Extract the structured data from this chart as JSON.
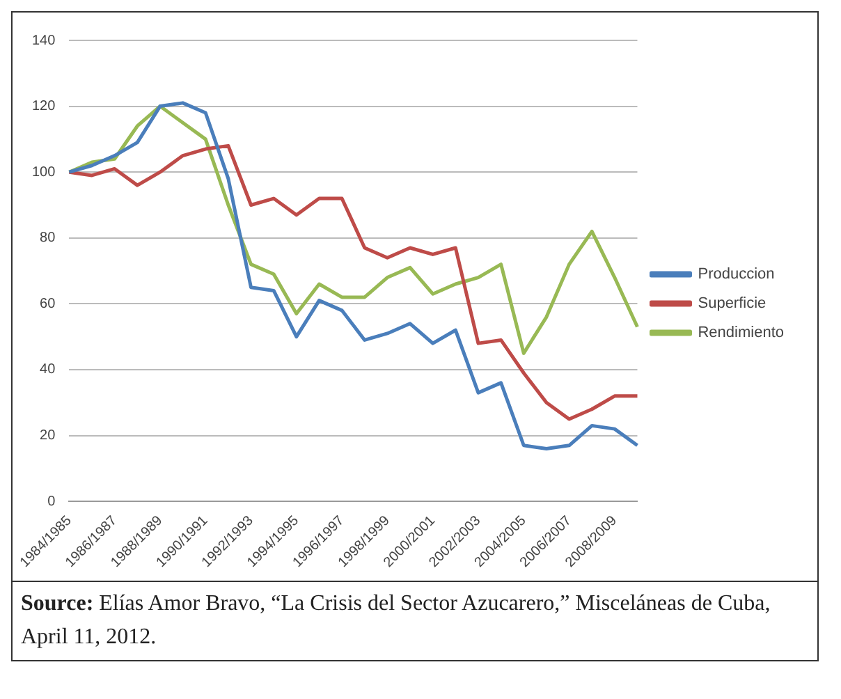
{
  "chart_data": {
    "type": "line",
    "categories": [
      "1984/1985",
      null,
      "1986/1987",
      null,
      "1988/1989",
      null,
      "1990/1991",
      null,
      "1992/1993",
      null,
      "1994/1995",
      null,
      "1996/1997",
      null,
      "1998/1999",
      null,
      "2000/2001",
      null,
      "2002/2003",
      null,
      "2004/2005",
      null,
      "2006/2007",
      null,
      "2008/2009",
      null
    ],
    "series": [
      {
        "name": "Produccion",
        "color": "#4a7ebb",
        "values": [
          100,
          102,
          105,
          109,
          120,
          121,
          118,
          98,
          65,
          64,
          50,
          61,
          58,
          49,
          51,
          54,
          48,
          52,
          33,
          36,
          17,
          16,
          17,
          23,
          22,
          17
        ]
      },
      {
        "name": "Superficie",
        "color": "#be4b48",
        "values": [
          100,
          99,
          101,
          96,
          100,
          105,
          107,
          108,
          90,
          92,
          87,
          92,
          92,
          77,
          74,
          77,
          75,
          77,
          48,
          49,
          39,
          30,
          25,
          28,
          32,
          32
        ]
      },
      {
        "name": "Rendimiento",
        "color": "#98b954",
        "values": [
          100,
          103,
          104,
          114,
          120,
          115,
          110,
          90,
          72,
          69,
          57,
          66,
          62,
          62,
          68,
          71,
          63,
          66,
          68,
          72,
          45,
          56,
          72,
          82,
          68,
          53
        ]
      }
    ],
    "ylim": [
      0,
      140
    ],
    "yticks": [
      0,
      20,
      40,
      60,
      80,
      100,
      120,
      140
    ],
    "grid": "y",
    "legend": "right",
    "marker": "none",
    "line_style": "solid",
    "annotations": [
      "Source: Elías Amor Bravo, “La Crisis del Sector Azucarero,” Misceláneas de Cuba, April 11, 2012."
    ]
  }
}
